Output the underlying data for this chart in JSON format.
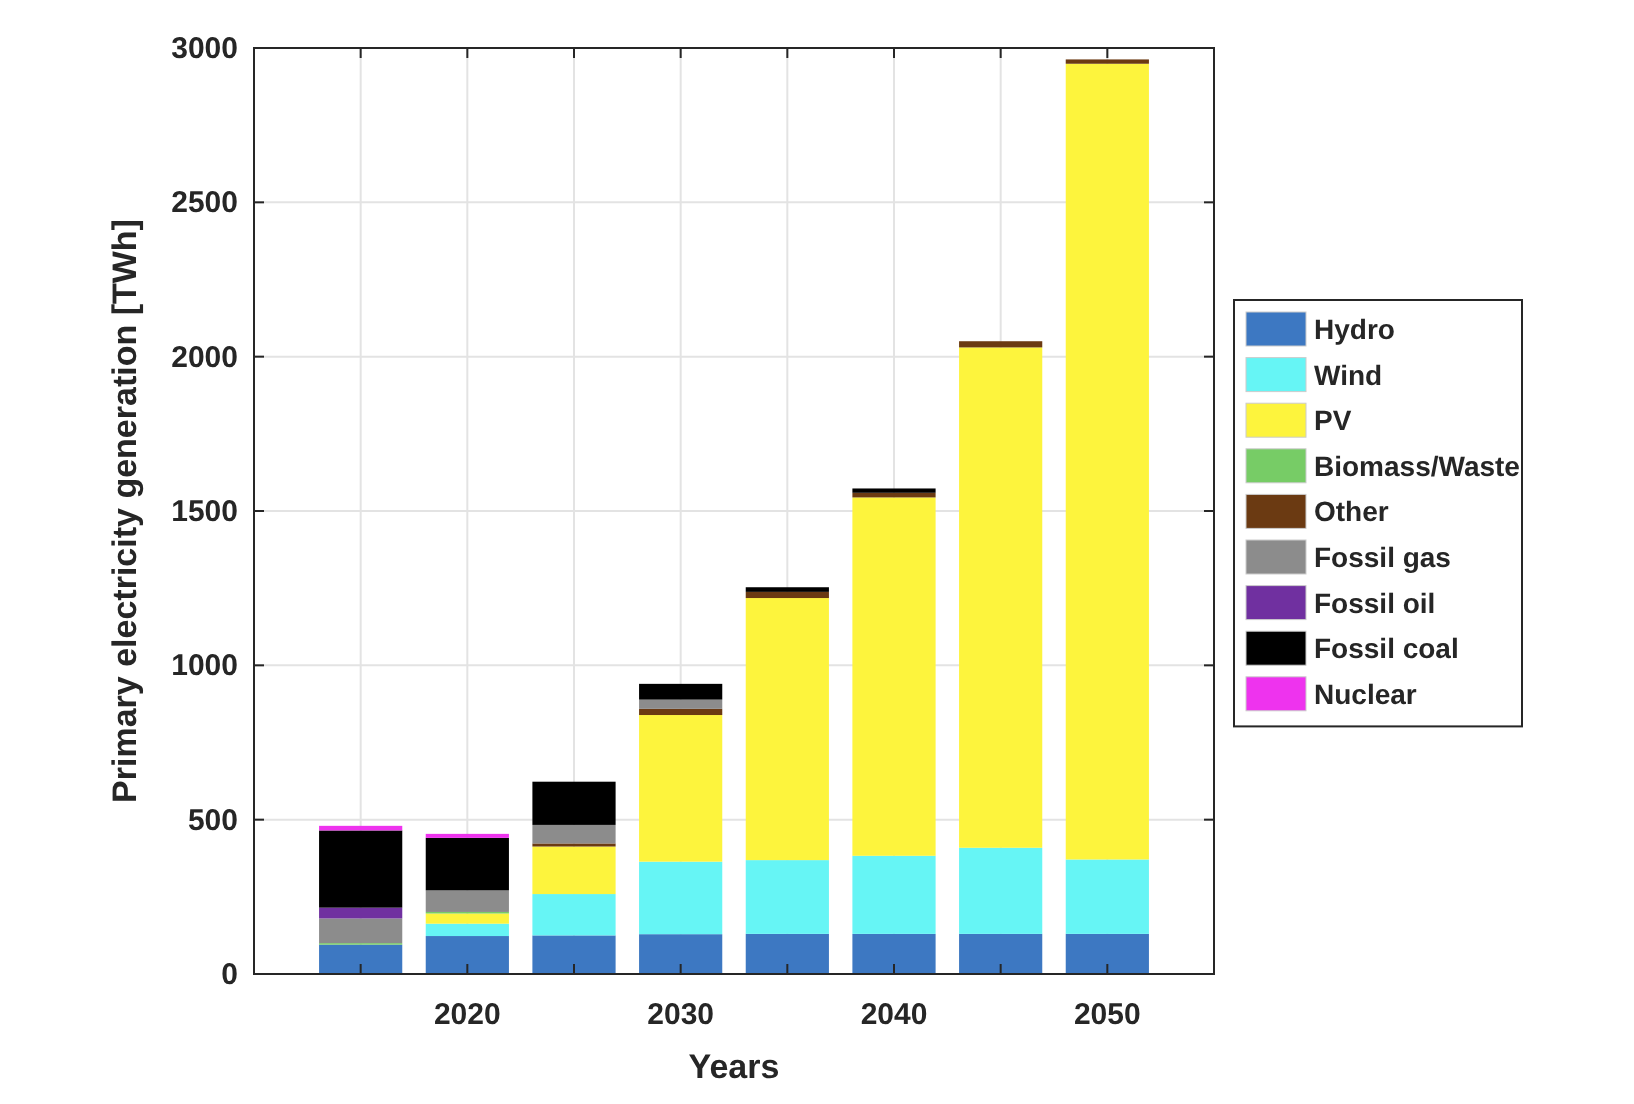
{
  "chart_data": {
    "type": "bar",
    "stacked": true,
    "xlabel": "Years",
    "ylabel": "Primary electricity generation [TWh]",
    "x": [
      2015,
      2020,
      2025,
      2030,
      2035,
      2040,
      2045,
      2050
    ],
    "xlim": [
      2010,
      2055
    ],
    "xticks": [
      {
        "value": 2015,
        "label": null
      },
      2020,
      {
        "value": 2025,
        "label": null
      },
      2030,
      {
        "value": 2035,
        "label": null
      },
      2040,
      {
        "value": 2045,
        "label": null
      },
      2050
    ],
    "ylim": [
      0,
      3000
    ],
    "yticks": [
      0,
      500,
      1000,
      1500,
      2000,
      2500,
      3000
    ],
    "grid": true,
    "legend": "right",
    "series": [
      {
        "name": "Hydro",
        "color": "#3d78c2",
        "values": [
          95,
          123,
          125,
          129,
          130,
          130,
          130,
          130
        ]
      },
      {
        "name": "Wind",
        "color": "#66f5f5",
        "values": [
          0,
          40,
          134,
          235,
          239,
          253,
          279,
          241
        ]
      },
      {
        "name": "PV",
        "color": "#fdf43d",
        "values": [
          0,
          33,
          154,
          475,
          849,
          1161,
          1621,
          2578
        ]
      },
      {
        "name": "Biomass/Waste",
        "color": "#77cc66",
        "values": [
          5,
          5,
          0,
          0,
          0,
          0,
          0,
          0
        ]
      },
      {
        "name": "Other",
        "color": "#6b3a12",
        "values": [
          0,
          0,
          10,
          20,
          20,
          15,
          20,
          14
        ]
      },
      {
        "name": "Fossil gas",
        "color": "#8c8c8c",
        "values": [
          80,
          70,
          60,
          30,
          0,
          0,
          0,
          0
        ]
      },
      {
        "name": "Fossil oil",
        "color": "#7030a0",
        "values": [
          35,
          0,
          0,
          0,
          0,
          0,
          0,
          0
        ]
      },
      {
        "name": "Fossil coal",
        "color": "#000000",
        "values": [
          250,
          170,
          140,
          51,
          15,
          14,
          0,
          0
        ]
      },
      {
        "name": "Nuclear",
        "color": "#ee33ee",
        "values": [
          15,
          13,
          0,
          0,
          0,
          0,
          0,
          0
        ]
      }
    ]
  }
}
